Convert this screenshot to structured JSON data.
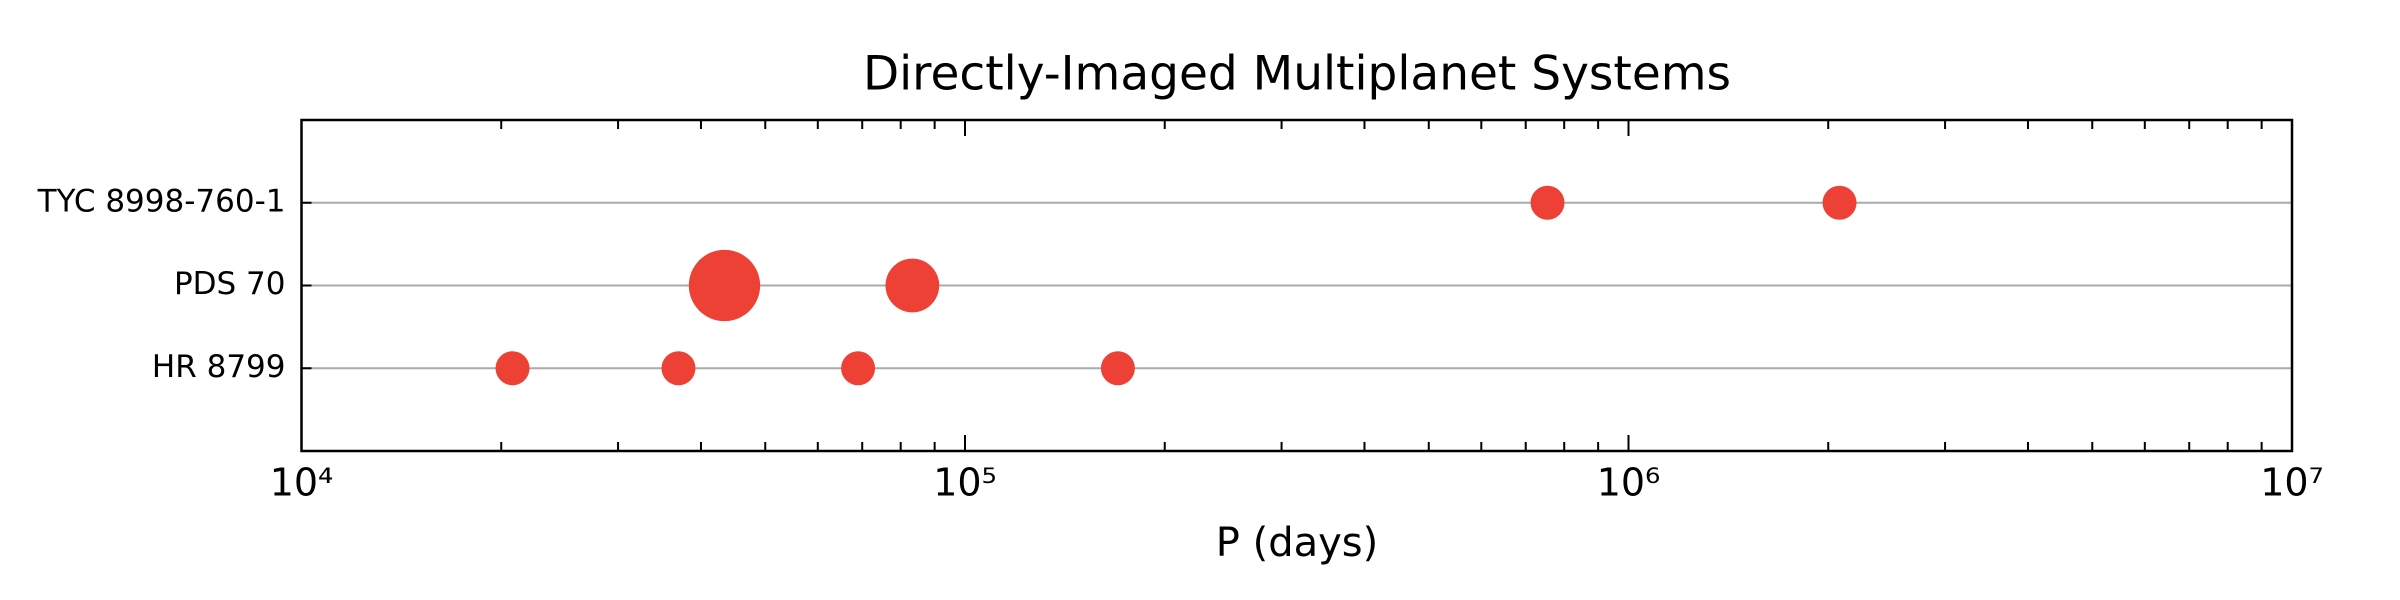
{
  "chart_data": {
    "type": "scatter",
    "title": "Directly-Imaged Multiplanet Systems",
    "x_label": "P (days)",
    "x_scale": "log",
    "xlim": [
      10000,
      10000000
    ],
    "xticks": [
      {
        "value": 10000,
        "label": "10⁴"
      },
      {
        "value": 100000,
        "label": "10⁵"
      },
      {
        "value": 1000000,
        "label": "10⁶"
      },
      {
        "value": 10000000,
        "label": "10⁷"
      }
    ],
    "minor_ticks": true,
    "grid": true,
    "color": "#ee4136",
    "systems": [
      {
        "name": "HR 8799",
        "periods": [
          20800,
          37000,
          69000,
          170000
        ],
        "sizes": [
          100,
          100,
          100,
          100
        ]
      },
      {
        "name": "PDS 70",
        "periods": [
          43400,
          83300
        ],
        "sizes": [
          440,
          250
        ]
      },
      {
        "name": "TYC 8998-760-1",
        "periods": [
          755000,
          2080000
        ],
        "sizes": [
          100,
          100
        ]
      }
    ]
  }
}
